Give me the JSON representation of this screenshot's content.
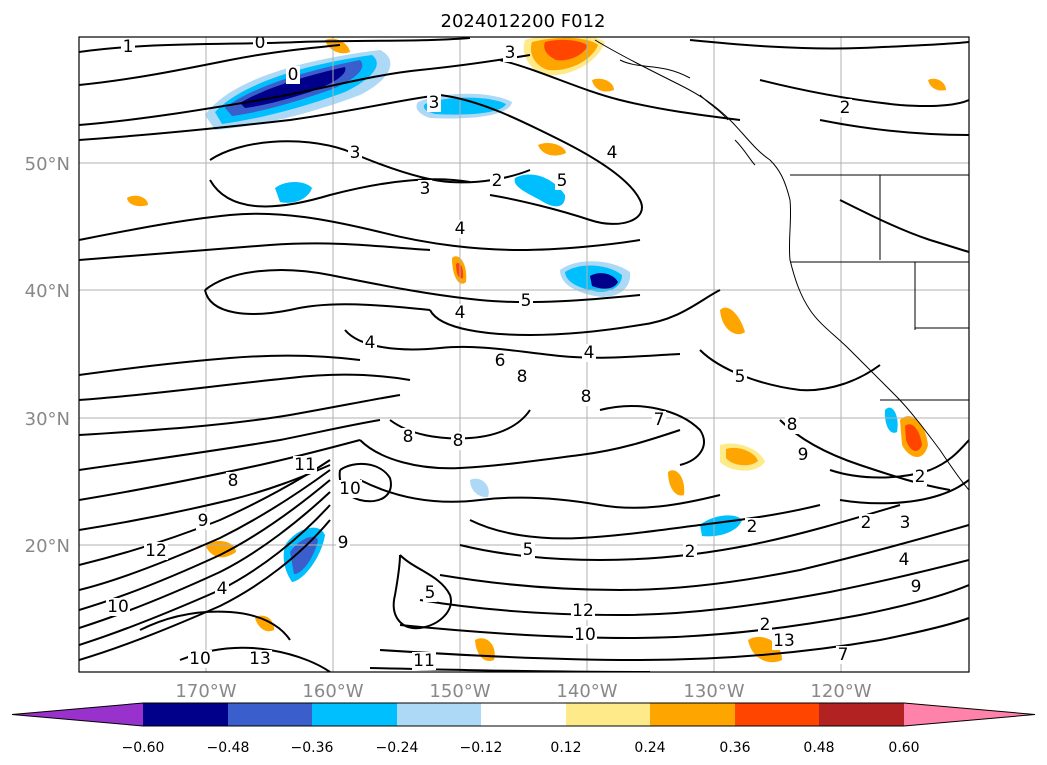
{
  "title": "2024012200 F012",
  "map": {
    "lon_labels": [
      "170°W",
      "160°W",
      "150°W",
      "140°W",
      "130°W",
      "120°W"
    ],
    "lat_labels": [
      "50°N",
      "40°N",
      "30°N",
      "20°N"
    ],
    "grid": true,
    "contour_labels": [
      "1",
      "0",
      "0",
      "3",
      "3",
      "3",
      "2",
      "4",
      "5",
      "3",
      "2",
      "4",
      "4",
      "5",
      "4",
      "6",
      "8",
      "4",
      "8",
      "5",
      "8",
      "7",
      "8",
      "8",
      "9",
      "10",
      "8",
      "9",
      "11",
      "12",
      "10",
      "9",
      "5",
      "2",
      "2",
      "2",
      "3",
      "4",
      "5",
      "12",
      "10",
      "13",
      "7",
      "2",
      "2",
      "4",
      "9",
      "10",
      "13",
      "11"
    ]
  },
  "colorbar": {
    "ticks": [
      "−0.60",
      "−0.48",
      "−0.36",
      "−0.24",
      "−0.12",
      "0.12",
      "0.24",
      "0.36",
      "0.48",
      "0.60"
    ],
    "colors": [
      "#9932cc",
      "#00008b",
      "#3a5fcd",
      "#00bfff",
      "#add8f6",
      "#ffffff",
      "#ffea8a",
      "#ffa500",
      "#ff4500",
      "#b22222",
      "#ff82ab"
    ],
    "extend": "both"
  }
}
